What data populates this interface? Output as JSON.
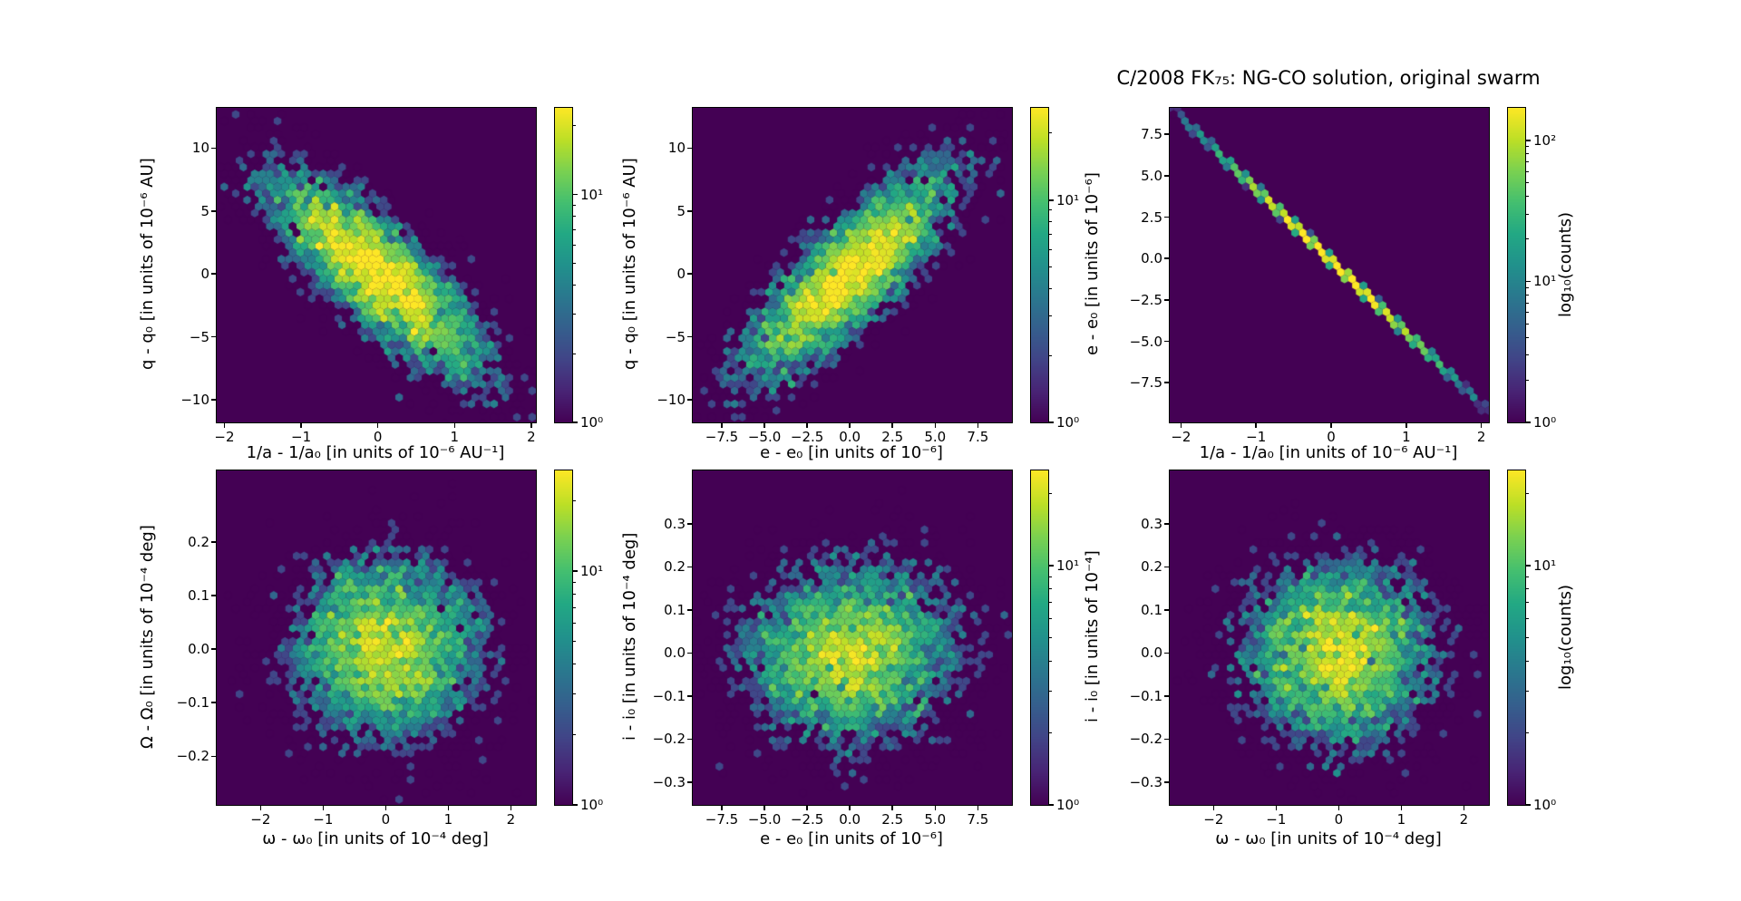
{
  "chart_data": {
    "type": "hexbin",
    "colormap": "viridis",
    "grid": false,
    "title": "C/2008 FK₇₅: NG-CO solution, original swarm",
    "colorbar_label": "log₁₀(counts)",
    "background_color": "#ffffff",
    "hex_background_color": "#440154",
    "viridis_stops": [
      "#440154",
      "#482475",
      "#414487",
      "#355f8d",
      "#2a788e",
      "#21918c",
      "#22a884",
      "#44bf70",
      "#7ad151",
      "#bddf26",
      "#fde725"
    ],
    "panels": [
      {
        "name": "q-vs-recip-a",
        "xlabel": "1/a - 1/a₀ [in units of 10⁻⁶ AU⁻¹]",
        "ylabel": "q - q₀ [in units of 10⁻⁶ AU]",
        "xlim": [
          -2.1,
          2.06
        ],
        "ylim": [
          -11.8,
          13.2
        ],
        "xticks": [
          -2,
          -1,
          0,
          1,
          2
        ],
        "x_tick_labels": [
          "−2",
          "−1",
          "0",
          "1",
          "2"
        ],
        "yticks": [
          10,
          5,
          0,
          -5,
          -10
        ],
        "y_tick_labels": [
          "10",
          "5",
          "0",
          "−5",
          "−10"
        ],
        "distribution": {
          "kind": "gauss2d",
          "n": 5500,
          "seed": 11,
          "mu_x": 0,
          "mu_y": 0,
          "sigma_x": 0.72,
          "sigma_y": 4.2,
          "rho": -0.82
        },
        "cbar_vmax": 24,
        "colorbar_ticks": [
          {
            "exp": 1,
            "label": "10¹"
          },
          {
            "exp": 0,
            "label": "10⁰"
          }
        ]
      },
      {
        "name": "q-vs-e",
        "xlabel": "e - e₀ [in units of 10⁻⁶]",
        "ylabel": "q - q₀ [in units of 10⁻⁶ AU]",
        "xlim": [
          -9.2,
          9.5
        ],
        "ylim": [
          -11.8,
          13.2
        ],
        "xticks": [
          -7.5,
          -5.0,
          -2.5,
          0.0,
          2.5,
          5.0,
          7.5
        ],
        "x_tick_labels": [
          "−7.5",
          "−5.0",
          "−2.5",
          "0.0",
          "2.5",
          "5.0",
          "7.5"
        ],
        "yticks": [
          10,
          5,
          0,
          -5,
          -10
        ],
        "y_tick_labels": [
          "10",
          "5",
          "0",
          "−5",
          "−10"
        ],
        "distribution": {
          "kind": "gauss2d",
          "n": 5500,
          "seed": 22,
          "mu_x": 0,
          "mu_y": 0,
          "sigma_x": 3.1,
          "sigma_y": 4.2,
          "rho": 0.82
        },
        "cbar_vmax": 26,
        "colorbar_ticks": [
          {
            "exp": 1,
            "label": "10¹"
          },
          {
            "exp": 0,
            "label": "10⁰"
          }
        ]
      },
      {
        "name": "e-vs-recip-a",
        "xlabel": "1/a - 1/a₀ [in units of 10⁻⁶ AU⁻¹]",
        "ylabel": "e - e₀ [in units of 10⁻⁶]",
        "xlim": [
          -2.15,
          2.1
        ],
        "ylim": [
          -9.9,
          9.1
        ],
        "xticks": [
          -2,
          -1,
          0,
          1,
          2
        ],
        "x_tick_labels": [
          "−2",
          "−1",
          "0",
          "1",
          "2"
        ],
        "yticks": [
          7.5,
          5.0,
          2.5,
          0.0,
          -2.5,
          -5.0,
          -7.5
        ],
        "y_tick_labels": [
          "7.5",
          "5.0",
          "2.5",
          "0.0",
          "−2.5",
          "−5.0",
          "−7.5"
        ],
        "distribution": {
          "kind": "line",
          "n": 5200,
          "seed": 33,
          "sigma_x": 0.72,
          "slope": -4.35,
          "intercept": -0.15,
          "jitter": 0.05
        },
        "cbar_vmax": 170,
        "colorbar_ticks": [
          {
            "exp": 2,
            "label": "10²"
          },
          {
            "exp": 1,
            "label": "10¹"
          },
          {
            "exp": 0,
            "label": "10⁰"
          }
        ]
      },
      {
        "name": "Omega-vs-omega",
        "xlabel": "ω - ω₀ [in units of 10⁻⁴ deg]",
        "ylabel": "Ω - Ω₀ [in units of 10⁻⁴ deg]",
        "xlim": [
          -2.7,
          2.4
        ],
        "ylim": [
          -0.291,
          0.334
        ],
        "xticks": [
          -2,
          -1,
          0,
          1,
          2
        ],
        "x_tick_labels": [
          "−2",
          "−1",
          "0",
          "1",
          "2"
        ],
        "yticks": [
          0.2,
          0.1,
          0.0,
          -0.1,
          -0.2
        ],
        "y_tick_labels": [
          "0.2",
          "0.1",
          "0.0",
          "−0.1",
          "−0.2"
        ],
        "distribution": {
          "kind": "gauss2d",
          "n": 5500,
          "seed": 44,
          "mu_x": 0,
          "mu_y": 0,
          "sigma_x": 0.75,
          "sigma_y": 0.085,
          "rho": 0.0
        },
        "cbar_vmax": 27,
        "colorbar_ticks": [
          {
            "exp": 1,
            "label": "10¹"
          },
          {
            "exp": 0,
            "label": "10⁰"
          }
        ]
      },
      {
        "name": "i-vs-e",
        "xlabel": "e - e₀ [in units of 10⁻⁶]",
        "ylabel": "i - i₀ [in units of 10⁻⁴ deg]",
        "xlim": [
          -9.2,
          9.5
        ],
        "ylim": [
          -0.353,
          0.424
        ],
        "xticks": [
          -7.5,
          -5.0,
          -2.5,
          0.0,
          2.5,
          5.0,
          7.5
        ],
        "x_tick_labels": [
          "−7.5",
          "−5.0",
          "−2.5",
          "0.0",
          "2.5",
          "5.0",
          "7.5"
        ],
        "yticks": [
          0.3,
          0.2,
          0.1,
          0.0,
          -0.1,
          -0.2,
          -0.3
        ],
        "y_tick_labels": [
          "0.3",
          "0.2",
          "0.1",
          "0.0",
          "−0.1",
          "−0.2",
          "−0.3"
        ],
        "distribution": {
          "kind": "gauss2d",
          "n": 5500,
          "seed": 55,
          "mu_x": 0,
          "mu_y": 0,
          "sigma_x": 3.1,
          "sigma_y": 0.105,
          "rho": 0.05
        },
        "cbar_vmax": 25,
        "colorbar_ticks": [
          {
            "exp": 1,
            "label": "10¹"
          },
          {
            "exp": 0,
            "label": "10⁰"
          }
        ]
      },
      {
        "name": "i-vs-omega",
        "xlabel": "ω - ω₀ [in units of 10⁻⁴ deg]",
        "ylabel": "i - i₀ [in units of 10⁻⁴]",
        "xlim": [
          -2.7,
          2.4
        ],
        "ylim": [
          -0.353,
          0.424
        ],
        "xticks": [
          -2,
          -1,
          0,
          1,
          2
        ],
        "x_tick_labels": [
          "−2",
          "−1",
          "0",
          "1",
          "2"
        ],
        "yticks": [
          0.3,
          0.2,
          0.1,
          0.0,
          -0.1,
          -0.2,
          -0.3
        ],
        "y_tick_labels": [
          "0.3",
          "0.2",
          "0.1",
          "0.0",
          "−0.1",
          "−0.2",
          "−0.3"
        ],
        "distribution": {
          "kind": "gauss2d",
          "n": 5500,
          "seed": 66,
          "mu_x": 0,
          "mu_y": 0,
          "sigma_x": 0.75,
          "sigma_y": 0.105,
          "rho": 0.0
        },
        "cbar_vmax": 25,
        "colorbar_ticks": [
          {
            "exp": 1,
            "label": "10¹"
          },
          {
            "exp": 0,
            "label": "10⁰"
          }
        ]
      }
    ]
  }
}
